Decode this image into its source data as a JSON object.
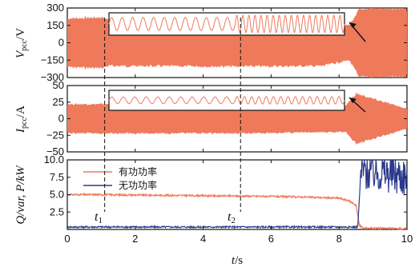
{
  "colors": {
    "voltage": "#ee7a5b",
    "current": "#ee7a5b",
    "active_power": "#ee7a5b",
    "reactive_power": "#2a3a8c",
    "axis": "#111111"
  },
  "chart_data": [
    {
      "id": "voltage",
      "type": "line",
      "ylabel_main": "V",
      "ylabel_sub": "pcc",
      "ylabel_unit": "/V",
      "ylim": [
        -300,
        300
      ],
      "yticks": [
        -300,
        -150,
        0,
        150,
        300
      ],
      "ytick_labels": [
        "−300",
        "−150",
        "0",
        "150",
        "300"
      ],
      "xlim": [
        0,
        10
      ],
      "envelope": [
        {
          "x": 0.0,
          "amp": 210
        },
        {
          "x": 1.0,
          "amp": 220
        },
        {
          "x": 1.2,
          "amp": 200
        },
        {
          "x": 5.0,
          "amp": 205
        },
        {
          "x": 7.5,
          "amp": 200
        },
        {
          "x": 8.3,
          "amp": 150
        },
        {
          "x": 8.6,
          "amp": 300
        },
        {
          "x": 10.0,
          "amp": 300
        }
      ],
      "inset": {
        "ylim": [
          -300,
          300
        ],
        "segments": [
          {
            "x0": 1.3,
            "x1": 5.0,
            "amp": 205,
            "cycles": 12
          },
          {
            "x0": 5.0,
            "x1": 8.2,
            "amp": 270,
            "cycles": 18
          }
        ]
      }
    },
    {
      "id": "current",
      "type": "line",
      "ylabel_main": "I",
      "ylabel_sub": "pcc",
      "ylabel_unit": "/A",
      "ylim": [
        -50,
        50
      ],
      "yticks": [
        -50,
        -25,
        0,
        25,
        50
      ],
      "ytick_labels": [
        "−50",
        "−25",
        "0",
        "25",
        "50"
      ],
      "xlim": [
        0,
        10
      ],
      "envelope": [
        {
          "x": 0.0,
          "amp": 22
        },
        {
          "x": 5.0,
          "amp": 22
        },
        {
          "x": 8.2,
          "amp": 20
        },
        {
          "x": 8.5,
          "amp": 38
        },
        {
          "x": 9.0,
          "amp": 30
        },
        {
          "x": 10.0,
          "amp": 15
        }
      ],
      "inset": {
        "ylim": [
          -50,
          50
        ],
        "segments": [
          {
            "x0": 1.3,
            "x1": 5.0,
            "amp": 20,
            "cycles": 11
          },
          {
            "x0": 5.0,
            "x1": 8.2,
            "amp": 22,
            "cycles": 15
          }
        ]
      }
    },
    {
      "id": "power",
      "type": "line",
      "ylabel": "Q/var, P/kW",
      "ylim": [
        0,
        10
      ],
      "yticks": [
        2.5,
        5.0,
        7.5,
        10.0
      ],
      "ytick_labels": [
        "2.5",
        "5.0",
        "7.5",
        "10.0"
      ],
      "xlim": [
        0,
        10
      ],
      "xticks": [
        0,
        2,
        4,
        6,
        8,
        10
      ],
      "xtick_labels": [
        "0",
        "2",
        "4",
        "6",
        "8",
        "10"
      ],
      "xlabel_var": "t",
      "xlabel_unit": "/s",
      "series": [
        {
          "name": "有功功率",
          "points": [
            [
              0,
              5.0
            ],
            [
              1,
              5.0
            ],
            [
              2,
              4.95
            ],
            [
              3,
              4.9
            ],
            [
              4,
              4.85
            ],
            [
              5,
              4.8
            ],
            [
              6,
              4.75
            ],
            [
              7,
              4.65
            ],
            [
              8,
              4.5
            ],
            [
              8.3,
              4.1
            ],
            [
              8.5,
              3.5
            ],
            [
              8.6,
              0.6
            ],
            [
              8.7,
              0.2
            ],
            [
              10,
              0.1
            ]
          ]
        },
        {
          "name": "无功功率",
          "points": [
            [
              0,
              0.35
            ],
            [
              8.55,
              0.35
            ],
            [
              8.65,
              8.5
            ],
            [
              9.0,
              8.4
            ],
            [
              9.5,
              8.0
            ],
            [
              10,
              7.6
            ]
          ]
        }
      ],
      "legend_position": "top-left"
    }
  ],
  "markers": [
    {
      "label": "t",
      "sub": "1",
      "x": 1.1
    },
    {
      "label": "t",
      "sub": "2",
      "x": 5.1
    }
  ]
}
